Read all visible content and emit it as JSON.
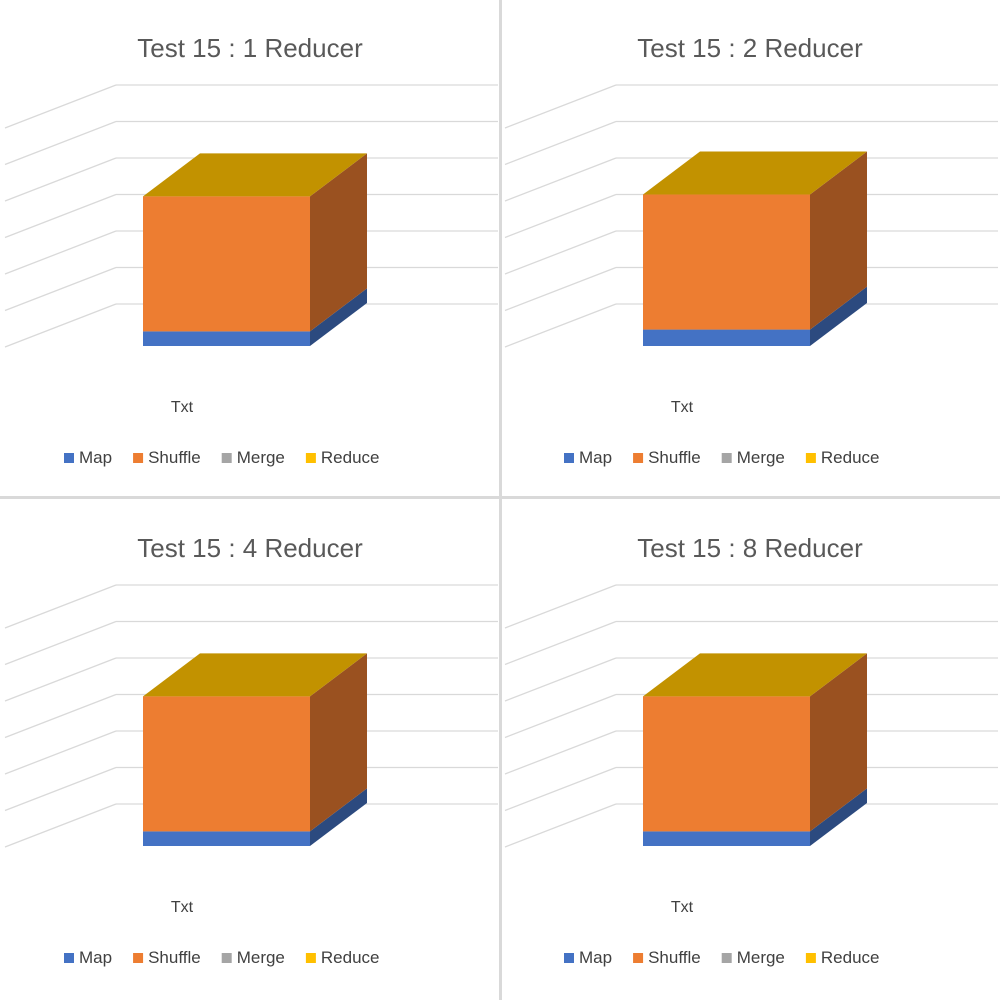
{
  "colors": {
    "map": "#4472c4",
    "shuffle": "#ed7d31",
    "merge": "#a5a5a5",
    "reduce": "#ffc000",
    "gridline": "#d9d9d9",
    "title_text": "#595959",
    "label_text": "#404040"
  },
  "chart_data": [
    {
      "type": "bar",
      "stacked": true,
      "style": "3d",
      "title": "Test 15 : 1 Reducer",
      "categories": [
        "Txt"
      ],
      "series": [
        {
          "name": "Map",
          "values": [
            4
          ]
        },
        {
          "name": "Shuffle",
          "values": [
            37
          ]
        },
        {
          "name": "Merge",
          "values": [
            0
          ]
        },
        {
          "name": "Reduce",
          "values": [
            0
          ]
        }
      ],
      "ylim": [
        0,
        60
      ],
      "grid": true,
      "legend": "bottom"
    },
    {
      "type": "bar",
      "stacked": true,
      "style": "3d",
      "title": "Test 15 : 2 Reducer",
      "categories": [
        "Txt"
      ],
      "series": [
        {
          "name": "Map",
          "values": [
            4.5
          ]
        },
        {
          "name": "Shuffle",
          "values": [
            37
          ]
        },
        {
          "name": "Merge",
          "values": [
            0
          ]
        },
        {
          "name": "Reduce",
          "values": [
            0
          ]
        }
      ],
      "ylim": [
        0,
        60
      ],
      "grid": true,
      "legend": "bottom"
    },
    {
      "type": "bar",
      "stacked": true,
      "style": "3d",
      "title": "Test 15 : 4 Reducer",
      "categories": [
        "Txt"
      ],
      "series": [
        {
          "name": "Map",
          "values": [
            4
          ]
        },
        {
          "name": "Shuffle",
          "values": [
            37
          ]
        },
        {
          "name": "Merge",
          "values": [
            0
          ]
        },
        {
          "name": "Reduce",
          "values": [
            0
          ]
        }
      ],
      "ylim": [
        0,
        60
      ],
      "grid": true,
      "legend": "bottom"
    },
    {
      "type": "bar",
      "stacked": true,
      "style": "3d",
      "title": "Test 15 : 8 Reducer",
      "categories": [
        "Txt"
      ],
      "series": [
        {
          "name": "Map",
          "values": [
            4
          ]
        },
        {
          "name": "Shuffle",
          "values": [
            37
          ]
        },
        {
          "name": "Merge",
          "values": [
            0
          ]
        },
        {
          "name": "Reduce",
          "values": [
            0
          ]
        }
      ],
      "ylim": [
        0,
        60
      ],
      "grid": true,
      "legend": "bottom"
    }
  ]
}
